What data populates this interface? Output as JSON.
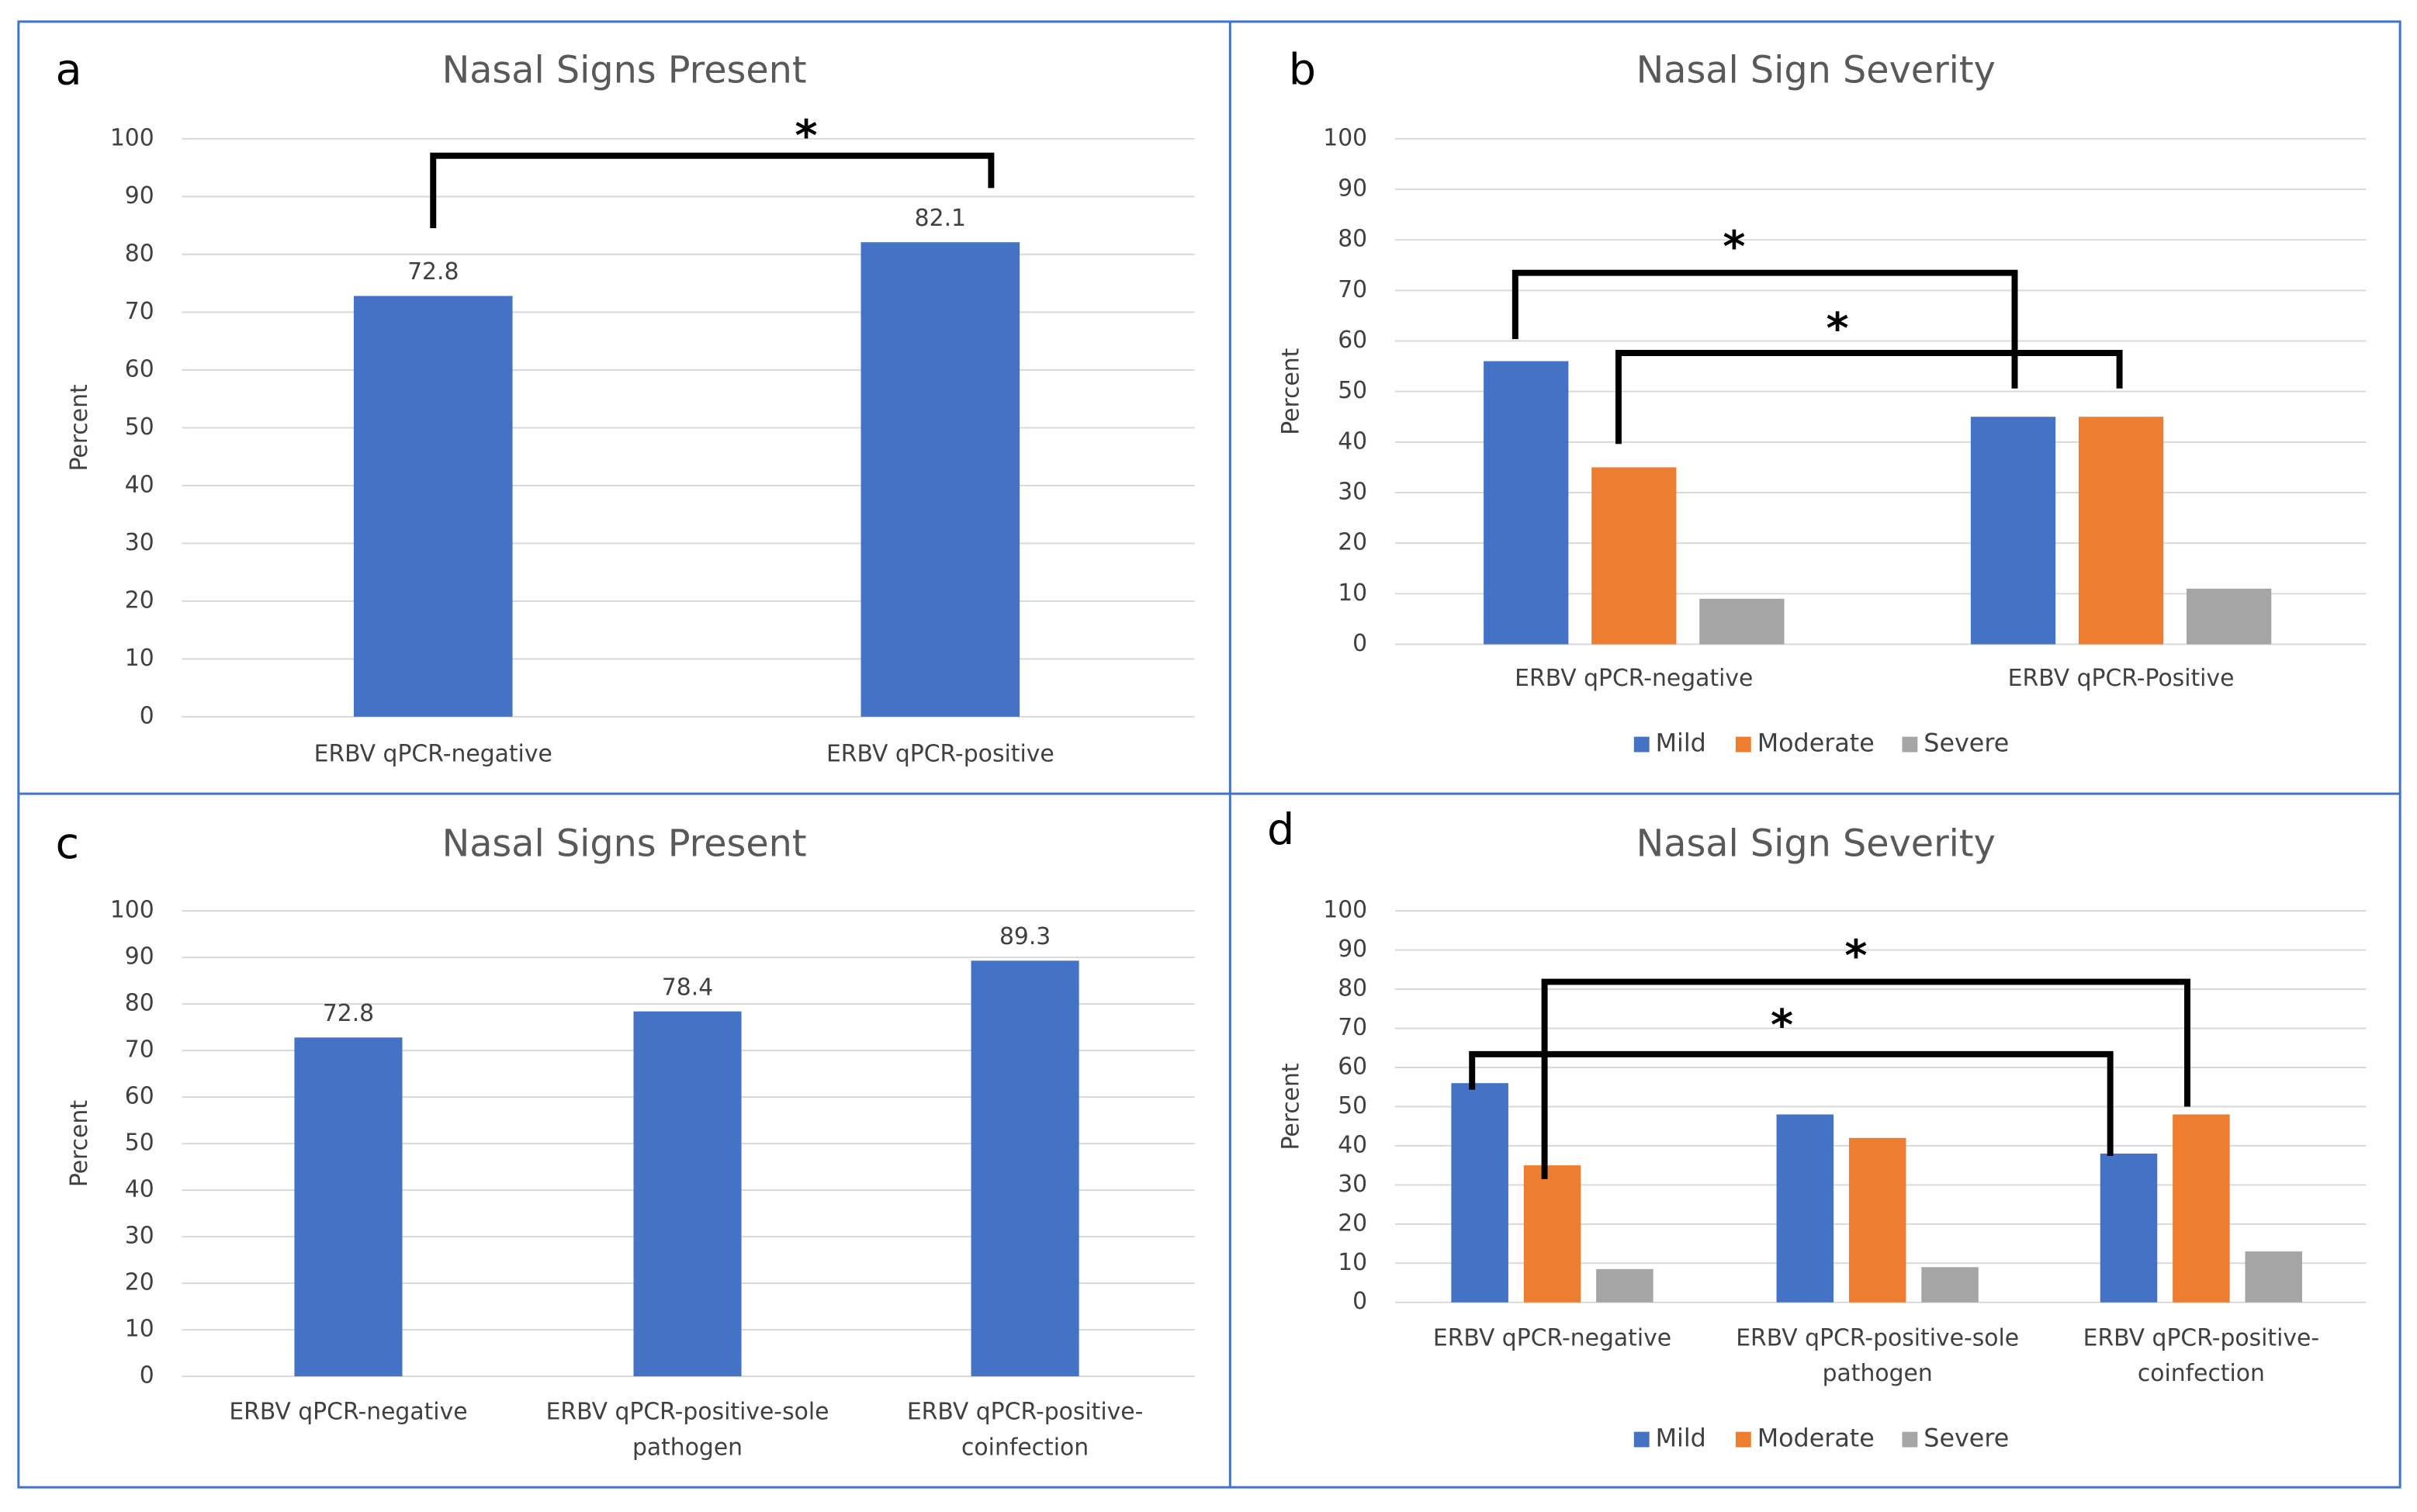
{
  "chart_data": [
    {
      "type": "bar",
      "panel": "a",
      "title": "Nasal Signs Present",
      "ylabel": "Percent",
      "categories": [
        "ERBV qPCR-negative",
        "ERBV qPCR-positive"
      ],
      "values": [
        72.8,
        82.1
      ],
      "color": "#4472c4",
      "ylim": [
        0,
        100
      ],
      "yticks": [
        0,
        10,
        20,
        30,
        40,
        50,
        60,
        70,
        80,
        90,
        100
      ],
      "grid": true,
      "annotations": [
        "*"
      ]
    },
    {
      "type": "grouped-bar",
      "panel": "b",
      "title": "Nasal Sign Severity",
      "ylabel": "Percent",
      "categories": [
        "ERBV qPCR-negative",
        "ERBV qPCR-Positive"
      ],
      "series": [
        {
          "name": "Mild",
          "color": "#4472c4",
          "values": [
            56,
            45
          ]
        },
        {
          "name": "Moderate",
          "color": "#ed7d31",
          "values": [
            35,
            45
          ]
        },
        {
          "name": "Severe",
          "color": "#a5a5a5",
          "values": [
            9,
            11
          ]
        }
      ],
      "ylim": [
        0,
        100
      ],
      "yticks": [
        0,
        10,
        20,
        30,
        40,
        50,
        60,
        70,
        80,
        90,
        100
      ],
      "grid": true,
      "legend": "bottom",
      "annotations": [
        "*",
        "*"
      ]
    },
    {
      "type": "bar",
      "panel": "c",
      "title": "Nasal Signs Present",
      "ylabel": "Percent",
      "categories": [
        "ERBV qPCR-negative",
        "ERBV qPCR-positive-sole pathogen",
        "ERBV qPCR-positive-coinfection"
      ],
      "values": [
        72.8,
        78.4,
        89.3
      ],
      "color": "#4472c4",
      "ylim": [
        0,
        100
      ],
      "yticks": [
        0,
        10,
        20,
        30,
        40,
        50,
        60,
        70,
        80,
        90,
        100
      ],
      "grid": true
    },
    {
      "type": "grouped-bar",
      "panel": "d",
      "title": "Nasal Sign Severity",
      "ylabel": "Percent",
      "categories": [
        "ERBV qPCR-negative",
        "ERBV qPCR-positive-sole pathogen",
        "ERBV qPCR-positive-coinfection"
      ],
      "series": [
        {
          "name": "Mild",
          "color": "#4472c4",
          "values": [
            56,
            48,
            38
          ]
        },
        {
          "name": "Moderate",
          "color": "#ed7d31",
          "values": [
            35,
            42,
            48
          ]
        },
        {
          "name": "Severe",
          "color": "#a5a5a5",
          "values": [
            8.5,
            9,
            13
          ]
        }
      ],
      "ylim": [
        0,
        100
      ],
      "yticks": [
        0,
        10,
        20,
        30,
        40,
        50,
        60,
        70,
        80,
        90,
        100
      ],
      "grid": true,
      "legend": "bottom",
      "annotations": [
        "*",
        "*"
      ]
    }
  ]
}
